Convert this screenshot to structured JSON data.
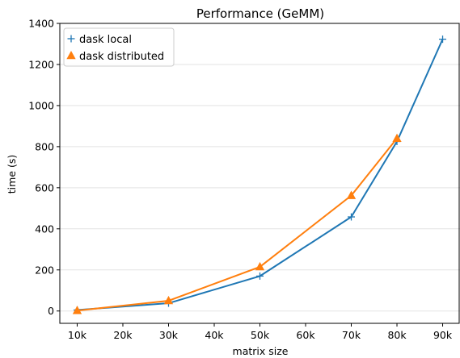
{
  "chart_data": {
    "type": "line",
    "title": "Performance (GeMM)",
    "xlabel": "matrix size",
    "ylabel": "time (s)",
    "x_ticks": [
      {
        "value": 10,
        "label": "10k"
      },
      {
        "value": 20,
        "label": "20k"
      },
      {
        "value": 30,
        "label": "30k"
      },
      {
        "value": 40,
        "label": "40k"
      },
      {
        "value": 50,
        "label": "50k"
      },
      {
        "value": 60,
        "label": "60k"
      },
      {
        "value": 70,
        "label": "70k"
      },
      {
        "value": 80,
        "label": "80k"
      },
      {
        "value": 90,
        "label": "90k"
      }
    ],
    "y_ticks": [
      0,
      200,
      400,
      600,
      800,
      1000,
      1200,
      1400
    ],
    "xlim": [
      6.2,
      93.8
    ],
    "ylim": [
      -60,
      1400
    ],
    "grid": "horizontal",
    "legend_position": "top-left",
    "series": [
      {
        "name": "dask local",
        "marker": "plus",
        "color": "#1f77b4",
        "x": [
          10,
          30,
          50,
          70,
          80,
          90
        ],
        "y": [
          5,
          38,
          170,
          458,
          825,
          1323
        ]
      },
      {
        "name": "dask distributed",
        "marker": "triangle",
        "color": "#ff7f0e",
        "x": [
          10,
          30,
          50,
          70,
          80,
          90
        ],
        "y": [
          2,
          50,
          215,
          562,
          840,
          null
        ]
      }
    ]
  }
}
